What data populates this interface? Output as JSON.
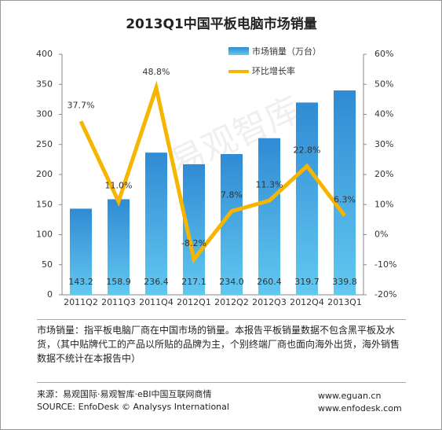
{
  "chart_data": {
    "type": "bar-line",
    "title": "2013Q1中国平板电脑市场销量",
    "watermark": "易观智库",
    "categories": [
      "2011Q2",
      "2011Q3",
      "2011Q4",
      "2012Q1",
      "2012Q2",
      "2012Q3",
      "2012Q4",
      "2013Q1"
    ],
    "series": [
      {
        "name": "市场销量（万台）",
        "type": "bar",
        "color": "#2f8bd4",
        "values": [
          143.2,
          158.9,
          236.4,
          217.1,
          234.0,
          260.4,
          319.7,
          339.8
        ],
        "value_labels": [
          "143.2",
          "158.9",
          "236.4",
          "217.1",
          "234.0",
          "260.4",
          "319.7",
          "339.8"
        ]
      },
      {
        "name": "环比增长率",
        "type": "line",
        "axis": "y2",
        "color": "#f7b500",
        "values": [
          37.7,
          11.0,
          48.8,
          -8.2,
          7.8,
          11.3,
          22.8,
          6.3
        ],
        "value_labels": [
          "37.7%",
          "11.0%",
          "48.8%",
          "-8.2%",
          "7.8%",
          "11.3%",
          "22.8%",
          "6.3%"
        ]
      }
    ],
    "ylim": [
      0,
      400
    ],
    "yticks": [
      0,
      50,
      100,
      150,
      200,
      250,
      300,
      350,
      400
    ],
    "y2lim": [
      -20,
      60
    ],
    "y2ticks": [
      {
        "value": -20,
        "label": "-20%"
      },
      {
        "value": -10,
        "label": "-10%"
      },
      {
        "value": 0,
        "label": "0%"
      },
      {
        "value": 10,
        "label": "10%"
      },
      {
        "value": 20,
        "label": "20%"
      },
      {
        "value": 30,
        "label": "30%"
      },
      {
        "value": 40,
        "label": "40%"
      },
      {
        "value": 50,
        "label": "50%"
      },
      {
        "value": 60,
        "label": "60%"
      }
    ]
  },
  "note": "市场销量：指平板电脑厂商在中国市场的销量。本报告平板销量数据不包含黑平板及水货，（其中贴牌代工的产品以所贴的品牌为主，个别终端厂商也面向海外出货，海外销售数据不统计在本报告中）",
  "source": {
    "cn": "来源：易观国际·易观智库·eBI中国互联网商情",
    "en": "SOURCE: EnfoDesk © Analysys International",
    "url1": "www.eguan.cn",
    "url2": "www.enfodesk.com"
  }
}
